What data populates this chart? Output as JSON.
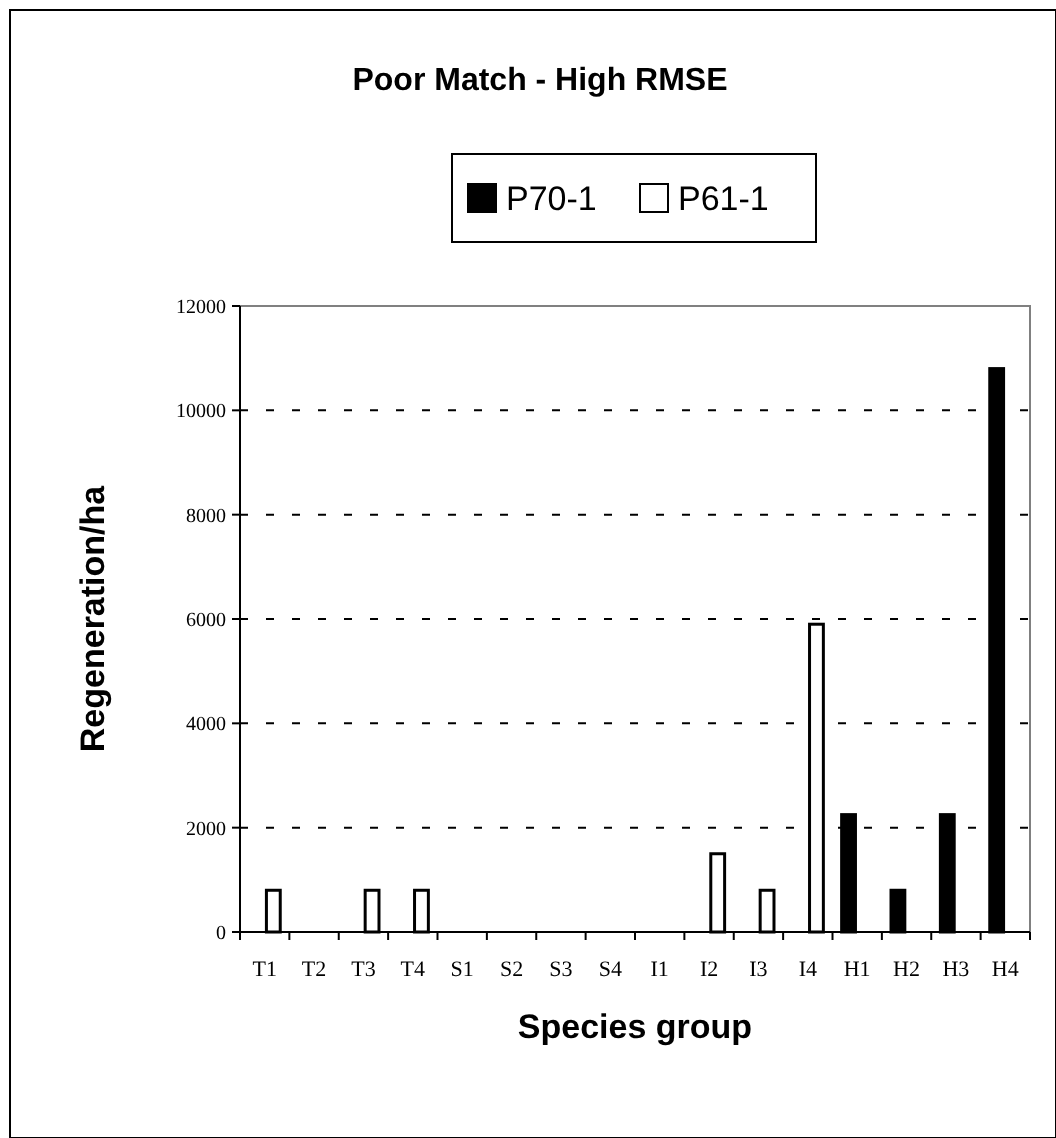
{
  "chart_data": {
    "type": "bar",
    "title": "Poor Match - High RMSE",
    "xlabel": "Species group",
    "ylabel": "Regeneration/ha",
    "categories": [
      "T1",
      "T2",
      "T3",
      "T4",
      "S1",
      "S2",
      "S3",
      "S4",
      "I1",
      "I2",
      "I3",
      "I4",
      "H1",
      "H2",
      "H3",
      "H4"
    ],
    "series": [
      {
        "name": "P70-1",
        "color": "#000000",
        "values": [
          0,
          0,
          0,
          0,
          0,
          0,
          0,
          0,
          0,
          0,
          0,
          0,
          2250,
          800,
          2250,
          10800
        ]
      },
      {
        "name": "P61-1",
        "color": "#ffffff",
        "values": [
          800,
          0,
          800,
          800,
          0,
          0,
          0,
          0,
          0,
          1500,
          800,
          5900,
          0,
          0,
          0,
          0
        ]
      }
    ],
    "ylim": [
      0,
      12000
    ],
    "yticks": [
      0,
      2000,
      4000,
      6000,
      8000,
      10000,
      12000
    ],
    "grid": "y",
    "legend": "top"
  }
}
